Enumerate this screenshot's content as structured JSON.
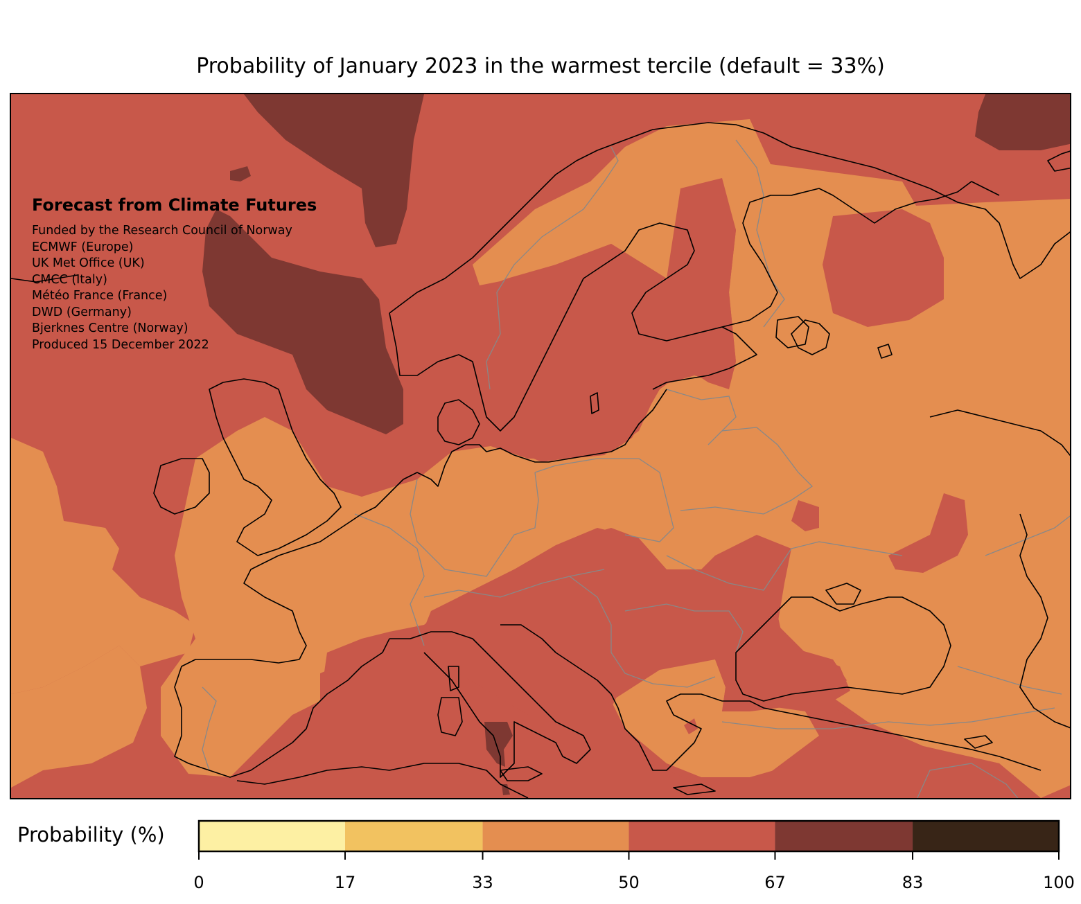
{
  "title": "Probability of January 2023 in the warmest tercile (default = 33%)",
  "credits": {
    "heading": "Forecast from Climate Futures",
    "lines": [
      "Funded by the Research Council of Norway",
      "ECMWF (Europe)",
      "UK Met Office (UK)",
      "CMCC (Italy)",
      "Météo France (France)",
      "DWD (Germany)",
      "Bjerknes Centre (Norway)",
      "Produced 15 December 2022"
    ]
  },
  "colorbar": {
    "label": "Probability (%)",
    "ticks": [
      "0",
      "17",
      "33",
      "50",
      "67",
      "83",
      "100"
    ],
    "bins": [
      {
        "from": 0,
        "to": 17,
        "color": "#fdf0a3"
      },
      {
        "from": 17,
        "to": 33,
        "color": "#f2c260"
      },
      {
        "from": 33,
        "to": 50,
        "color": "#e48e50"
      },
      {
        "from": 50,
        "to": 67,
        "color": "#c8584a"
      },
      {
        "from": 67,
        "to": 83,
        "color": "#7e3832"
      },
      {
        "from": 83,
        "to": 100,
        "color": "#382517"
      }
    ]
  },
  "map": {
    "colors": {
      "prob_33_50": "#e48e50",
      "prob_50_67": "#c8584a",
      "prob_67_83": "#7e3832",
      "coastline": "#000000",
      "borders": "#888888"
    }
  }
}
